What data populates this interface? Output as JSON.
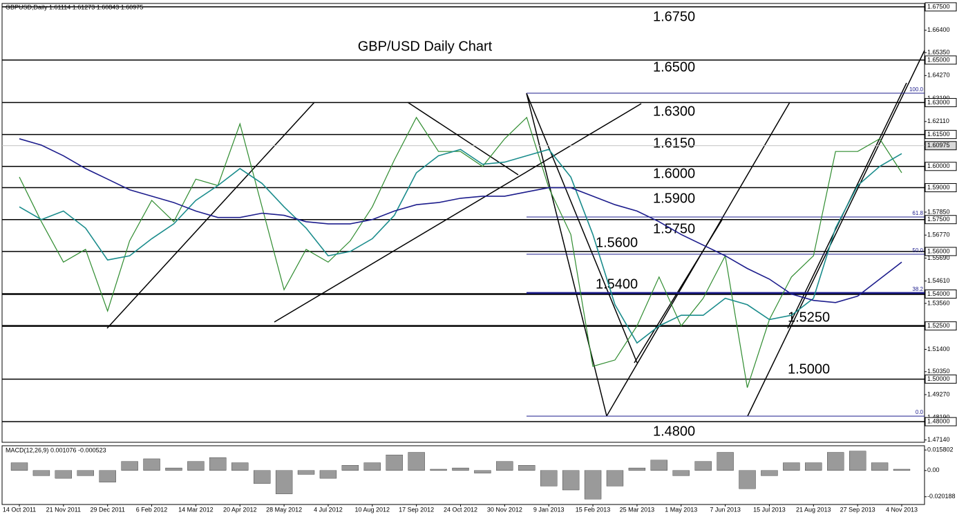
{
  "chart_data": {
    "type": "line",
    "title": "GBP/USD Daily Chart",
    "header": "GBPUSD,Daily  1.61114 1.61273 1.60843 1.60975",
    "categories": [
      "14 Oct 2011",
      null,
      "21 Nov 2011",
      null,
      "29 Dec 2011",
      null,
      "6 Feb 2012",
      null,
      "14 Mar 2012",
      null,
      "20 Apr 2012",
      null,
      "28 May 2012",
      null,
      "4 Jul 2012",
      null,
      "10 Aug 2012",
      null,
      "17 Sep 2012",
      null,
      "24 Oct 2012",
      null,
      "30 Nov 2012",
      null,
      "9 Jan 2013",
      null,
      "15 Feb 2013",
      null,
      "25 Mar 2013",
      null,
      "1 May 2013",
      null,
      "7 Jun 2013",
      null,
      "15 Jul 2013",
      null,
      "21 Aug 2013",
      null,
      "27 Sep 2013",
      null,
      "4 Nov 2013"
    ],
    "series": [
      {
        "color": "#2e8b2e",
        "values": [
          1.595,
          1.574,
          1.555,
          1.561,
          1.532,
          1.565,
          1.584,
          1.574,
          1.594,
          1.591,
          1.62,
          1.581,
          1.542,
          1.561,
          1.555,
          1.565,
          1.581,
          1.603,
          1.623,
          1.607,
          1.607,
          1.6,
          1.613,
          1.623,
          1.59,
          1.568,
          1.506,
          1.509,
          1.525,
          1.548,
          1.525,
          1.538,
          1.558,
          1.496,
          1.528,
          1.548,
          1.558,
          1.607,
          1.607,
          1.613,
          1.597
        ]
      },
      {
        "color": "#1a8c8c",
        "values": [
          1.581,
          1.575,
          1.579,
          1.571,
          1.556,
          1.558,
          1.566,
          1.573,
          1.584,
          1.591,
          1.599,
          1.592,
          1.581,
          1.571,
          1.558,
          1.56,
          1.566,
          1.577,
          1.597,
          1.605,
          1.608,
          1.601,
          1.602,
          1.605,
          1.608,
          1.595,
          1.568,
          1.535,
          1.517,
          1.525,
          1.53,
          1.53,
          1.538,
          1.535,
          1.528,
          1.53,
          1.538,
          1.571,
          1.591,
          1.6,
          1.606
        ]
      },
      {
        "color": "#1c1c8c",
        "values": [
          1.613,
          1.61,
          1.605,
          1.599,
          1.594,
          1.589,
          1.586,
          1.583,
          1.579,
          1.576,
          1.576,
          1.578,
          1.577,
          1.574,
          1.573,
          1.573,
          1.575,
          1.579,
          1.582,
          1.583,
          1.585,
          1.586,
          1.586,
          1.588,
          1.59,
          1.59,
          1.586,
          1.582,
          1.579,
          1.574,
          1.568,
          1.563,
          1.558,
          1.552,
          1.547,
          1.54,
          1.537,
          1.536,
          1.539,
          1.547,
          1.555
        ]
      }
    ],
    "ylim": [
      1.4703,
      1.6766
    ],
    "yticks": [
      {
        "value": 1.664,
        "label": "1.66400"
      },
      {
        "value": 1.6535,
        "label": "1.65350"
      },
      {
        "value": 1.6427,
        "label": "1.64270"
      },
      {
        "value": 1.6319,
        "label": "1.63190"
      },
      {
        "value": 1.6211,
        "label": "1.62110"
      },
      {
        "value": 1.5785,
        "label": "1.57850"
      },
      {
        "value": 1.5677,
        "label": "1.56770"
      },
      {
        "value": 1.5569,
        "label": "1.55690"
      },
      {
        "value": 1.5461,
        "label": "1.54610"
      },
      {
        "value": 1.5356,
        "label": "1.53560"
      },
      {
        "value": 1.514,
        "label": "1.51400"
      },
      {
        "value": 1.5035,
        "label": "1.50350"
      },
      {
        "value": 1.4927,
        "label": "1.49270"
      },
      {
        "value": 1.4819,
        "label": "1.48190"
      },
      {
        "value": 1.4714,
        "label": "1.47140"
      }
    ],
    "levels": [
      {
        "value": 1.675,
        "label": "1.6750",
        "axis_label": "1.67500"
      },
      {
        "value": 1.65,
        "label": "1.6500",
        "axis_label": "1.65000"
      },
      {
        "value": 1.63,
        "label": "1.6300",
        "axis_label": "1.63000"
      },
      {
        "value": 1.615,
        "label": "1.6150",
        "axis_label": "1.61500"
      },
      {
        "value": 1.6,
        "label": "1.6000",
        "axis_label": "1.60000"
      },
      {
        "value": 1.59,
        "label": "1.5900",
        "axis_label": "1.59000"
      },
      {
        "value": 1.575,
        "label": "1.5750",
        "axis_label": "1.57500"
      },
      {
        "value": 1.56,
        "label": "1.5600",
        "axis_label": "1.56000"
      },
      {
        "value": 1.54,
        "label": "1.5400",
        "axis_label": "1.54000"
      },
      {
        "value": 1.525,
        "label": "1.5250",
        "axis_label": "1.52500"
      },
      {
        "value": 1.5,
        "label": "1.5000",
        "axis_label": "1.50000"
      },
      {
        "value": 1.48,
        "label": "1.4800",
        "axis_label": "1.48000"
      }
    ],
    "last_price": {
      "value": 1.60975,
      "label": "1.60975"
    },
    "fibonacci": [
      {
        "ratio_label": "100.0",
        "price": 1.6344
      },
      {
        "ratio_label": "61.8",
        "price": 1.5762
      },
      {
        "ratio_label": "50.0",
        "price": 1.5587
      },
      {
        "ratio_label": "38.2",
        "price": 1.5405
      },
      {
        "ratio_label": "0.0",
        "price": 1.4826
      }
    ],
    "macd": {
      "label": "MACD(12,26,9) 0.001076 -0.000523",
      "color": "#000000",
      "values": [
        0.006,
        -0.004,
        -0.006,
        -0.004,
        -0.009,
        0.007,
        0.009,
        0.002,
        0.007,
        0.01,
        0.006,
        -0.01,
        -0.018,
        -0.003,
        -0.006,
        0.004,
        0.006,
        0.012,
        0.014,
        0.001,
        0.002,
        -0.002,
        0.007,
        0.004,
        -0.012,
        -0.015,
        -0.022,
        -0.012,
        0.002,
        0.008,
        -0.004,
        0.007,
        0.014,
        -0.014,
        -0.004,
        0.006,
        0.006,
        0.014,
        0.015,
        0.006,
        0.001
      ],
      "ylim": [
        -0.02616,
        0.01907
      ],
      "yticks": [
        0.015802,
        {
          "value": 0,
          "label": "0.00"
        },
        -0.020188
      ]
    }
  }
}
